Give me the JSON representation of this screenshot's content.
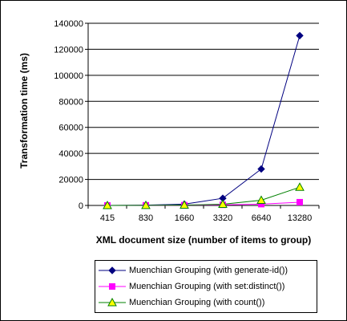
{
  "chart_data": {
    "type": "line",
    "xlabel": "XML document size (number of items to group)",
    "ylabel": "Transformation time (ms)",
    "categories": [
      "415",
      "830",
      "1660",
      "3320",
      "6640",
      "13280"
    ],
    "ylim": [
      0,
      140000
    ],
    "yticks": [
      "0",
      "20000",
      "40000",
      "60000",
      "80000",
      "100000",
      "120000",
      "140000"
    ],
    "grid": true,
    "legend_position": "bottom",
    "series": [
      {
        "name": "Muenchian Grouping (with generate-id())",
        "color": "#000080",
        "marker": "diamond",
        "values": [
          0,
          200,
          1000,
          5500,
          28000,
          130500
        ]
      },
      {
        "name": "Muenchian Grouping (with set:distinct())",
        "color": "#ff00ff",
        "marker": "square",
        "values": [
          0,
          100,
          200,
          500,
          1000,
          2500
        ]
      },
      {
        "name": "Muenchian Grouping (with count())",
        "color": "#008000",
        "marker": "triangle",
        "marker_fill": "#ffff00",
        "values": [
          0,
          100,
          300,
          900,
          4000,
          14000
        ]
      }
    ]
  }
}
